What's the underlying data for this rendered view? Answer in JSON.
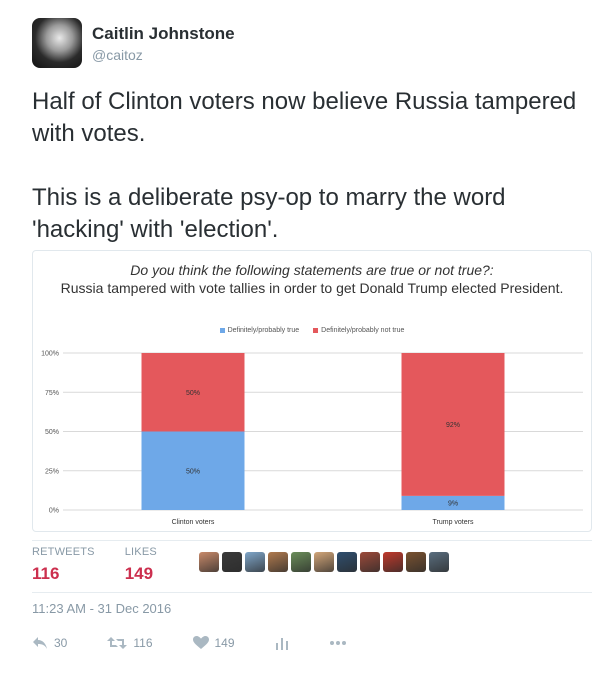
{
  "author": {
    "display_name": "Caitlin Johnstone",
    "handle": "@caitoz"
  },
  "tweet": {
    "paragraph_1": "Half of Clinton voters now believe Russia tampered with votes.",
    "paragraph_2": "This is a deliberate psy-op to marry the word 'hacking' with 'election'."
  },
  "chart_data": {
    "type": "bar",
    "stacked": true,
    "title_question": "Do you think the following statements are true or not true?:",
    "title_statement": "Russia tampered with vote tallies in order to get Donald Trump elected President.",
    "categories": [
      "Clinton voters",
      "Trump voters"
    ],
    "series": [
      {
        "name": "Definitely/probably true",
        "values": [
          50,
          9
        ],
        "labels": [
          "50%",
          "9%"
        ],
        "color": "#6ea8e8"
      },
      {
        "name": "Definitely/probably not true",
        "values": [
          50,
          92
        ],
        "labels": [
          "50%",
          "92%"
        ],
        "color": "#e4585c"
      }
    ],
    "ylim": [
      0,
      100
    ],
    "yticks": [
      "0%",
      "25%",
      "50%",
      "75%",
      "100%"
    ],
    "grid": true,
    "legend_position": "top"
  },
  "stats": {
    "retweets_label": "RETWEETS",
    "retweets_count": "116",
    "likes_label": "LIKES",
    "likes_count": "149"
  },
  "likers": [
    "#c88a6a",
    "#3a3a3a",
    "#7fa6c9",
    "#b07a4e",
    "#6b8e5a",
    "#d2a679",
    "#2f4f6f",
    "#9c4a3a",
    "#c0392b",
    "#7a5230",
    "#5a6e7f"
  ],
  "timestamp": "11:23 AM - 31 Dec 2016",
  "actions": {
    "reply_count": "30",
    "retweet_count": "116",
    "like_count": "149"
  },
  "colors": {
    "text": "#292f33",
    "muted": "#8899a6",
    "count_accent": "#cc2f4e",
    "bar_blue": "#6ea8e8",
    "bar_red": "#e4585c"
  }
}
